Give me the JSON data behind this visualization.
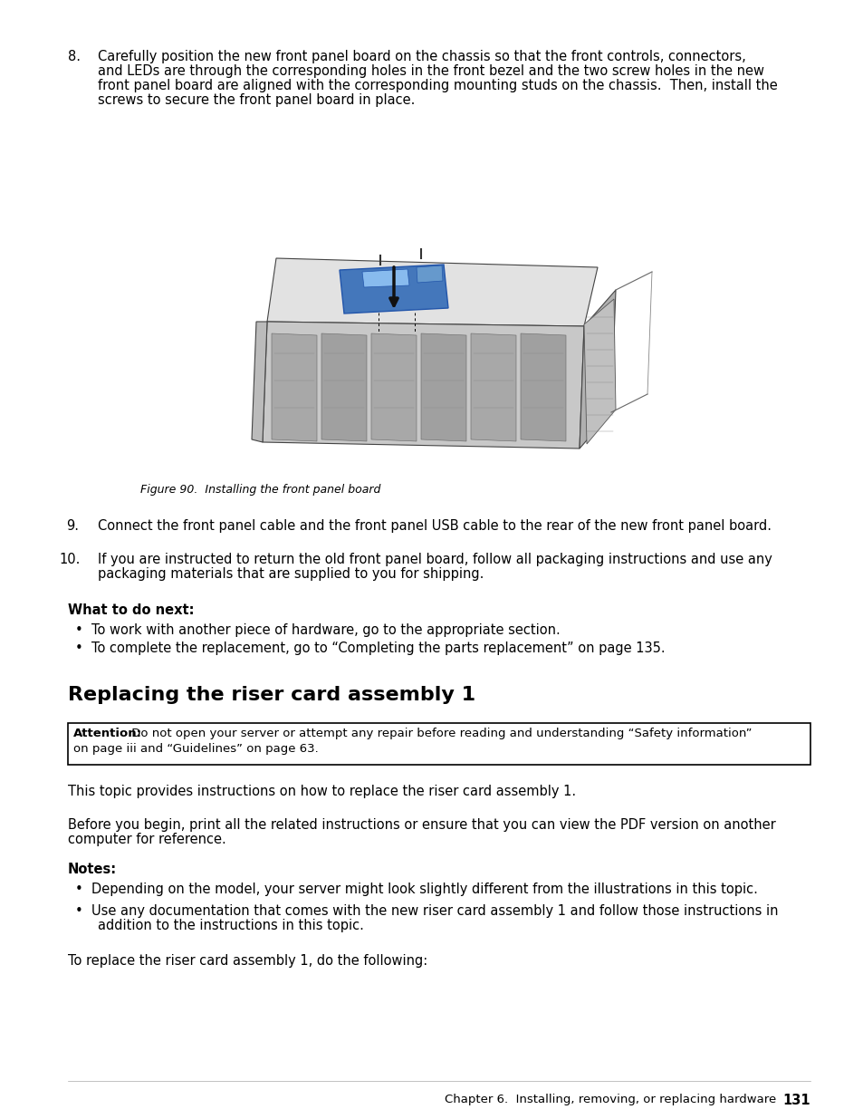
{
  "bg_color": "#ffffff",
  "text_color": "#000000",
  "step8_number": "8.",
  "step8_line1": "Carefully position the new front panel board on the chassis so that the front controls, connectors,",
  "step8_line2": "and LEDs are through the corresponding holes in the front bezel and the two screw holes in the new",
  "step8_line3": "front panel board are aligned with the corresponding mounting studs on the chassis.  Then, install the",
  "step8_line4": "screws to secure the front panel board in place.",
  "fig_caption": "Figure 90.  Installing the front panel board",
  "step9_number": "9.",
  "step9_text": "Connect the front panel cable and the front panel USB cable to the rear of the new front panel board.",
  "step10_number": "10.",
  "step10_line1": "If you are instructed to return the old front panel board, follow all packaging instructions and use any",
  "step10_line2": "packaging materials that are supplied to you for shipping.",
  "what_to_do_next_header": "What to do next:",
  "bullet1": "To work with another piece of hardware, go to the appropriate section.",
  "bullet2": "To complete the replacement, go to “Completing the parts replacement” on page 135.",
  "section_title": "Replacing the riser card assembly 1",
  "attention_bold": "Attention:",
  "attention_line1": " Do not open your server or attempt any repair before reading and understanding “Safety information”",
  "attention_line2": "on page iii and “Guidelines” on page 63.",
  "para1": "This topic provides instructions on how to replace the riser card assembly 1.",
  "para2_line1": "Before you begin, print all the related instructions or ensure that you can view the PDF version on another",
  "para2_line2": "computer for reference.",
  "notes_header": "Notes:",
  "note1": "Depending on the model, your server might look slightly different from the illustrations in this topic.",
  "note2_line1": "Use any documentation that comes with the new riser card assembly 1 and follow those instructions in",
  "note2_line2": "addition to the instructions in this topic.",
  "para3": "To replace the riser card assembly 1, do the following:",
  "footer_text": "Chapter 6.  Installing, removing, or replacing hardware",
  "footer_page": "131"
}
